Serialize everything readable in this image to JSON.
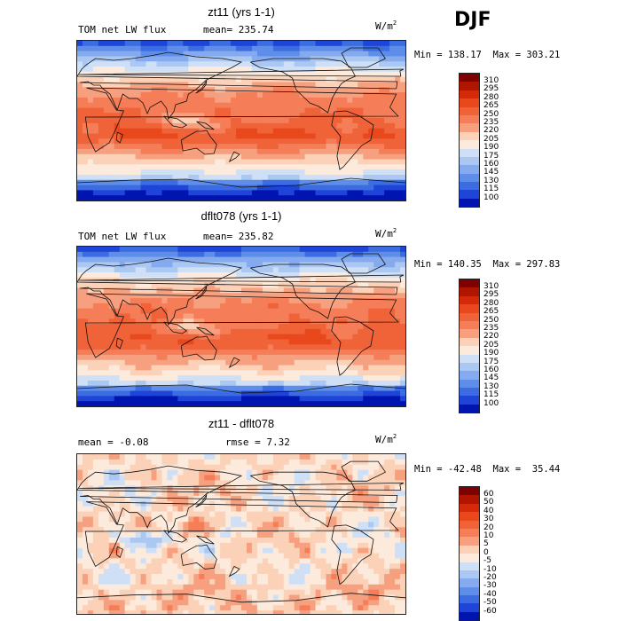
{
  "season": "DJF",
  "units_base": "W/m",
  "units_exp": "2",
  "panels": [
    {
      "title": "zt11 (yrs 1-1)",
      "left_label": "TOM net LW flux",
      "right_label": "mean= 235.74",
      "minmax": "Min = 138.17  Max = 303.21",
      "ticks": [
        "310",
        "295",
        "280",
        "265",
        "250",
        "235",
        "220",
        "205",
        "190",
        "175",
        "160",
        "145",
        "130",
        "115",
        "100"
      ],
      "colors": [
        "#7f0000",
        "#b01500",
        "#d42a0a",
        "#e8481c",
        "#f06238",
        "#f57e58",
        "#f7a080",
        "#fbd1b8",
        "#fcebdd",
        "#cfe0f6",
        "#aac8f2",
        "#85aaee",
        "#5f8eea",
        "#3b6ce2",
        "#1f44d8",
        "#0014b0"
      ],
      "kind": "abs"
    },
    {
      "title": "dflt078 (yrs 1-1)",
      "left_label": "TOM net LW flux",
      "right_label": "mean= 235.82",
      "minmax": "Min = 140.35  Max = 297.83",
      "ticks": [
        "310",
        "295",
        "280",
        "265",
        "250",
        "235",
        "220",
        "205",
        "190",
        "175",
        "160",
        "145",
        "130",
        "115",
        "100"
      ],
      "colors": [
        "#7f0000",
        "#b01500",
        "#d42a0a",
        "#e8481c",
        "#f06238",
        "#f57e58",
        "#f7a080",
        "#fbd1b8",
        "#fcebdd",
        "#cfe0f6",
        "#aac8f2",
        "#85aaee",
        "#5f8eea",
        "#3b6ce2",
        "#1f44d8",
        "#0014b0"
      ],
      "kind": "abs"
    },
    {
      "title": "zt11 - dflt078",
      "left_label": "mean =  -0.08",
      "right_label": "rmse =   7.32",
      "minmax": "Min = -42.48  Max =  35.44",
      "ticks": [
        "60",
        "50",
        "40",
        "30",
        "20",
        "10",
        "5",
        "0",
        "-5",
        "-10",
        "-20",
        "-30",
        "-40",
        "-50",
        "-60"
      ],
      "colors": [
        "#7f0000",
        "#b01500",
        "#d42a0a",
        "#e8481c",
        "#f06238",
        "#f57e58",
        "#f7a080",
        "#fbd1b8",
        "#fcebdd",
        "#cfe0f6",
        "#aac8f2",
        "#85aaee",
        "#5f8eea",
        "#3b6ce2",
        "#1f44d8",
        "#0014b0"
      ],
      "kind": "diff"
    }
  ],
  "chart_data": [
    {
      "type": "heatmap",
      "title": "zt11 (yrs 1-1)",
      "variable": "TOM net LW flux",
      "mean": 235.74,
      "min": 138.17,
      "max": 303.21,
      "units": "W/m2",
      "levels": [
        100,
        115,
        130,
        145,
        160,
        175,
        190,
        205,
        220,
        235,
        250,
        265,
        280,
        295,
        310
      ]
    },
    {
      "type": "heatmap",
      "title": "dflt078 (yrs 1-1)",
      "variable": "TOM net LW flux",
      "mean": 235.82,
      "min": 140.35,
      "max": 297.83,
      "units": "W/m2",
      "levels": [
        100,
        115,
        130,
        145,
        160,
        175,
        190,
        205,
        220,
        235,
        250,
        265,
        280,
        295,
        310
      ]
    },
    {
      "type": "heatmap",
      "title": "zt11 - dflt078",
      "mean": -0.08,
      "rmse": 7.32,
      "min": -42.48,
      "max": 35.44,
      "units": "W/m2",
      "levels": [
        -60,
        -50,
        -40,
        -30,
        -20,
        -10,
        -5,
        0,
        5,
        10,
        20,
        30,
        40,
        50,
        60
      ]
    }
  ]
}
